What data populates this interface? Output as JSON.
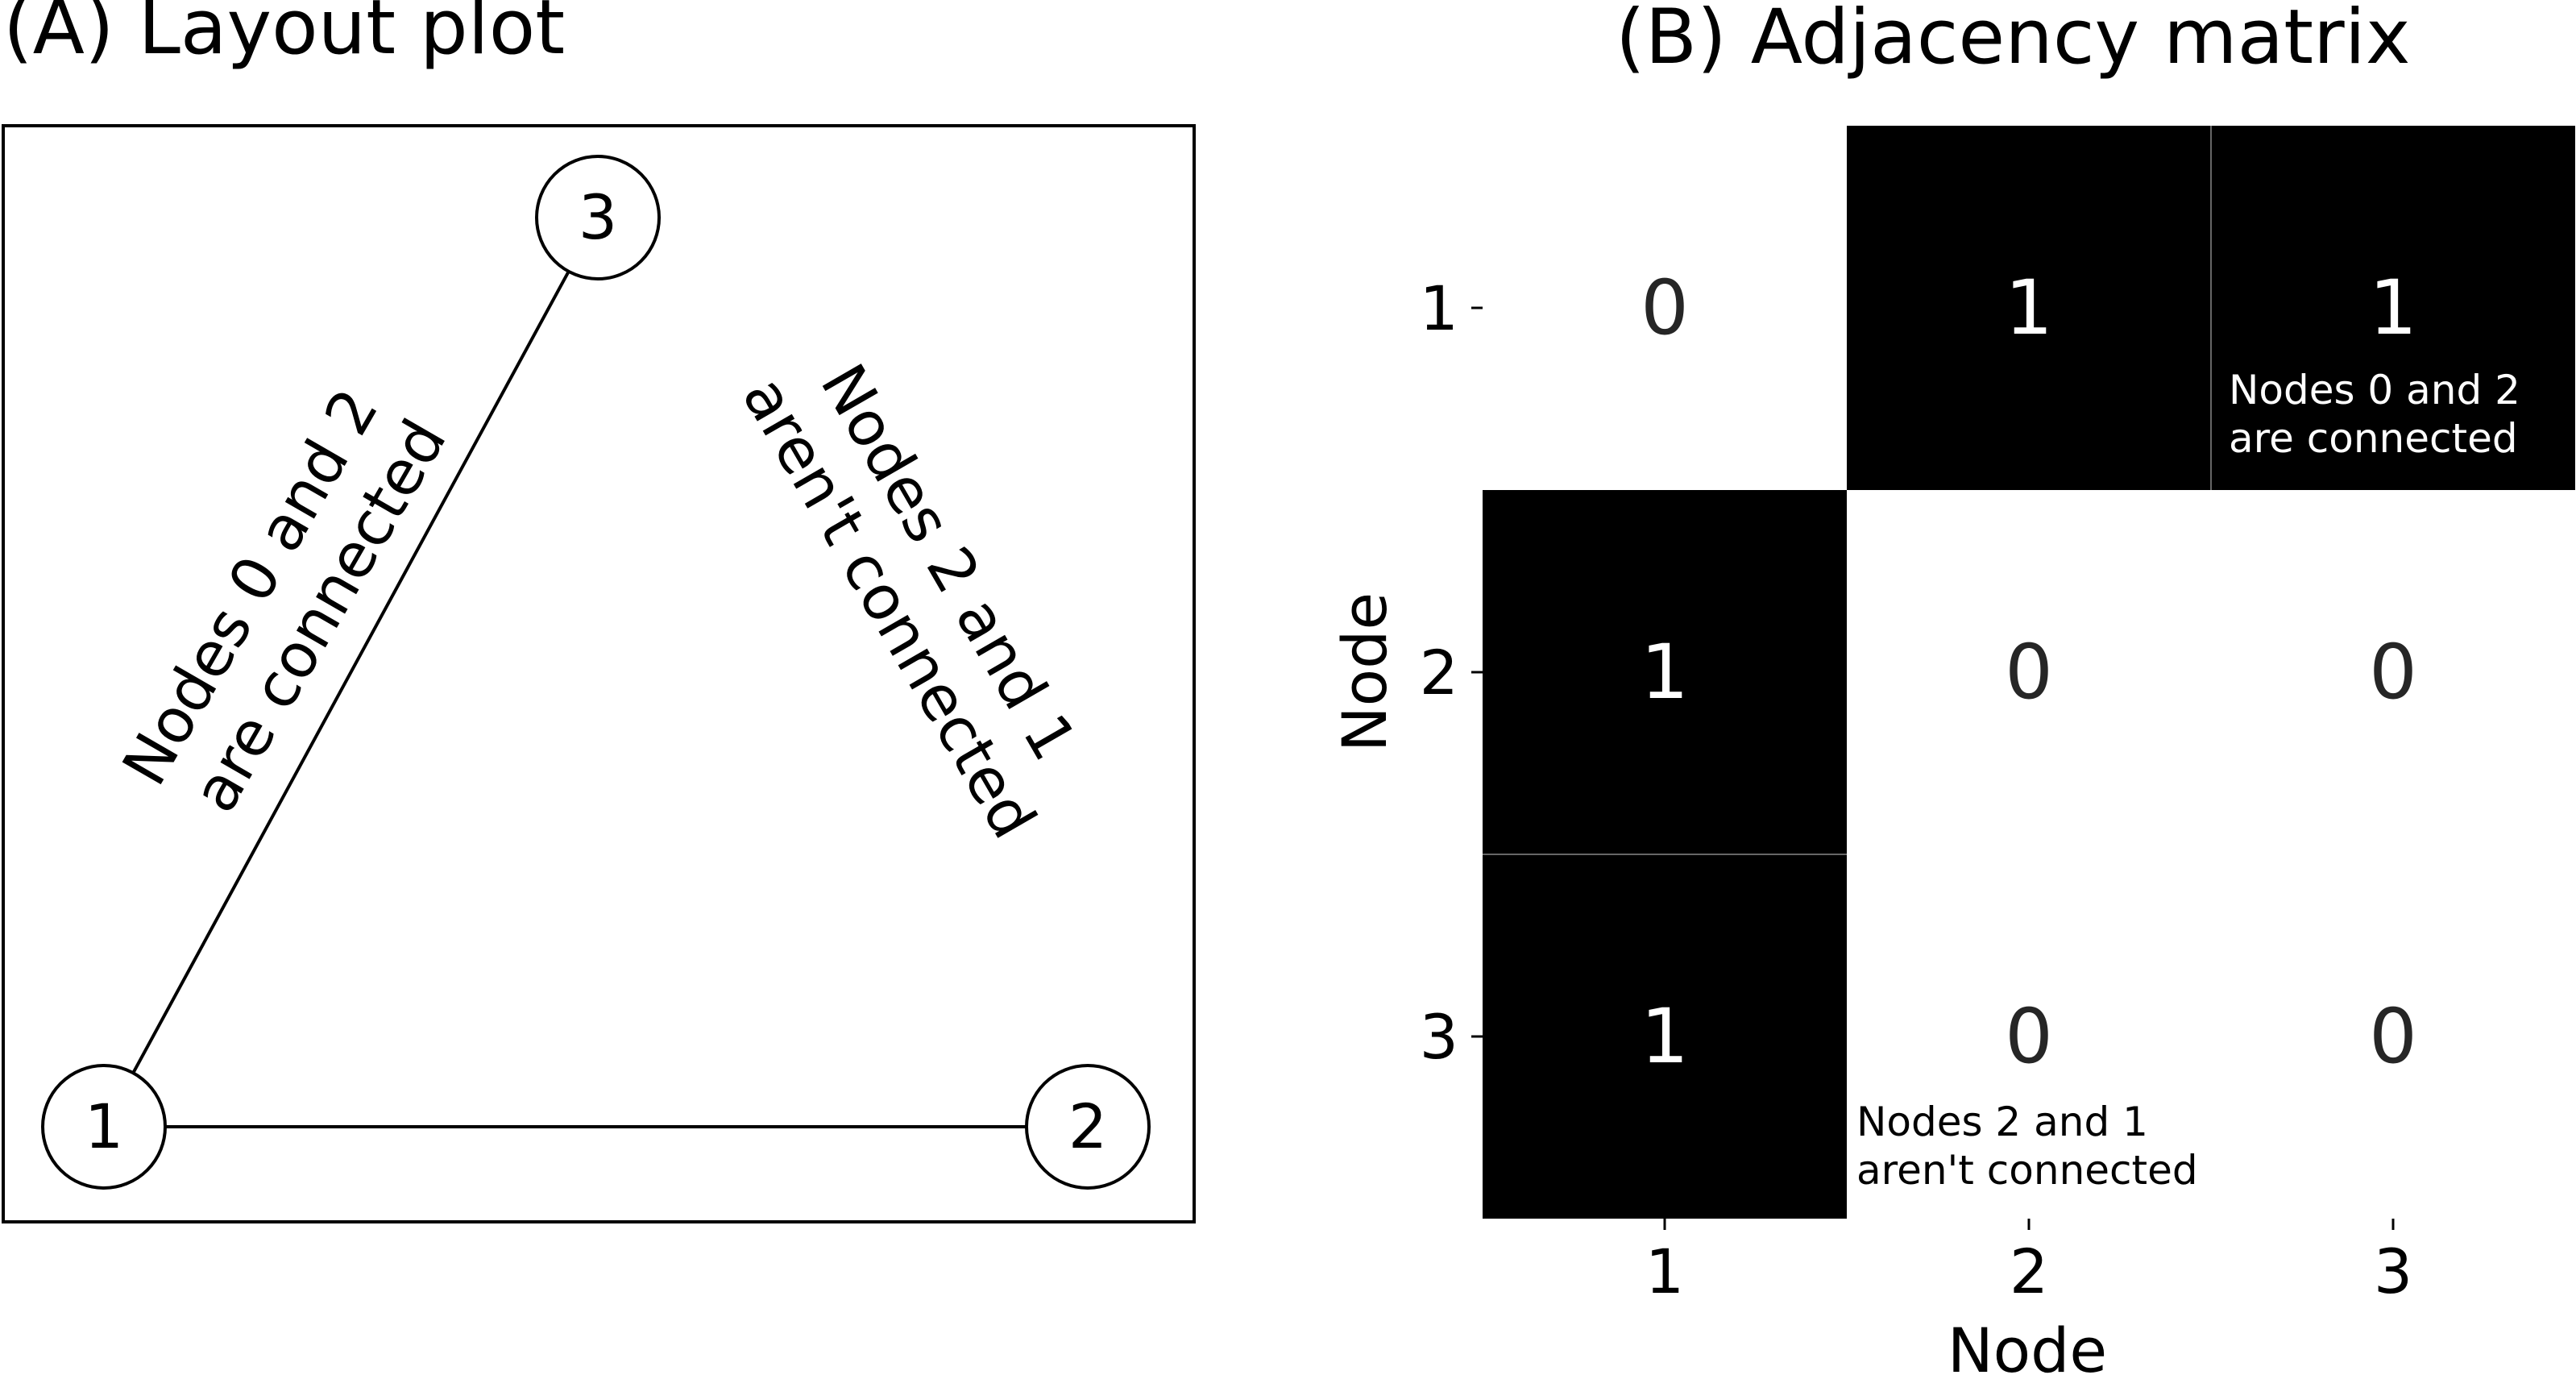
{
  "layout_plot": {
    "title": "(A) Layout plot",
    "nodes": [
      {
        "id": "n1",
        "label": "1"
      },
      {
        "id": "n2",
        "label": "2"
      },
      {
        "id": "n3",
        "label": "3"
      }
    ],
    "edges": [
      {
        "from": "n1",
        "to": "n3"
      },
      {
        "from": "n1",
        "to": "n2"
      }
    ],
    "annotation_connected": [
      "Nodes 0 and 2",
      "are connected"
    ],
    "annotation_not_connected": [
      "Nodes 2 and 1",
      "aren't connected"
    ]
  },
  "adjacency_matrix": {
    "title": "(B) Adjacency matrix",
    "row_labels": [
      "1",
      "2",
      "3"
    ],
    "col_labels": [
      "1",
      "2",
      "3"
    ],
    "xlabel": "Node",
    "ylabel": "Node",
    "values": [
      [
        0,
        1,
        1
      ],
      [
        1,
        0,
        0
      ],
      [
        1,
        0,
        0
      ]
    ],
    "colors": {
      "one": "#000000",
      "zero": "#ffffff",
      "one_text": "#ffffff",
      "zero_text": "#262626"
    },
    "annotation_connected": [
      "Nodes 0 and 2",
      "are connected"
    ],
    "annotation_not_connected": [
      "Nodes 2 and 1",
      "aren't connected"
    ]
  }
}
